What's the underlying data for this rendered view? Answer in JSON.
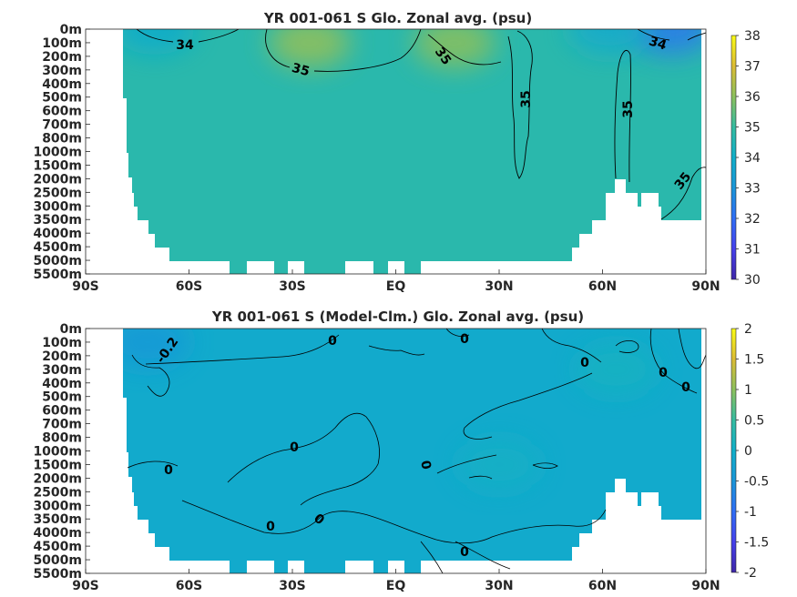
{
  "chart_data": [
    {
      "type": "heatmap",
      "title": "YR 001-061 S Glo. Zonal avg. (psu)",
      "x_ticks": [
        "90S",
        "60S",
        "30S",
        "EQ",
        "30N",
        "60N",
        "90N"
      ],
      "x_tick_values": [
        -90,
        -60,
        -30,
        0,
        30,
        60,
        90
      ],
      "xlim": [
        -90,
        90
      ],
      "y_ticks": [
        "0m",
        "100m",
        "200m",
        "300m",
        "400m",
        "500m",
        "600m",
        "700m",
        "800m",
        "1000m",
        "1500m",
        "2000m",
        "2500m",
        "3000m",
        "3500m",
        "4000m",
        "4500m",
        "5000m",
        "5500m"
      ],
      "colorbar": {
        "ticks": [
          "30",
          "31",
          "32",
          "33",
          "34",
          "35",
          "36",
          "37",
          "38"
        ],
        "tick_values": [
          30,
          31,
          32,
          33,
          34,
          35,
          36,
          37,
          38
        ],
        "range": [
          30,
          38
        ],
        "colormap": "parula"
      },
      "contour_labels": [
        {
          "text": "34",
          "lat": -66,
          "depth": "100m"
        },
        {
          "text": "35",
          "lat": -27,
          "depth": "250m"
        },
        {
          "text": "35",
          "lat": 14,
          "depth": "200m"
        },
        {
          "text": "35",
          "lat": 26,
          "depth": "600m"
        },
        {
          "text": "35",
          "lat": 62,
          "depth": "650m"
        },
        {
          "text": "34",
          "lat": 78,
          "depth": "100m"
        },
        {
          "text": "35",
          "lat": 80,
          "depth": "2000m"
        }
      ],
      "background_value": 34.7,
      "features": [
        {
          "lat": -25,
          "depth": "100m",
          "value": 36.1
        },
        {
          "lat": 17,
          "depth": "100m",
          "value": 36.0
        },
        {
          "lat": 80,
          "depth": "0m",
          "value": 32.3
        },
        {
          "lat": 62,
          "depth": "0m",
          "value": 33.8
        },
        {
          "lat": -70,
          "depth": "0m",
          "value": 33.9
        }
      ]
    },
    {
      "type": "heatmap",
      "title": "YR 001-061 S (Model-Clm.) Glo. Zonal avg. (psu)",
      "x_ticks": [
        "90S",
        "60S",
        "30S",
        "EQ",
        "30N",
        "60N",
        "90N"
      ],
      "x_tick_values": [
        -90,
        -60,
        -30,
        0,
        30,
        60,
        90
      ],
      "xlim": [
        -90,
        90
      ],
      "y_ticks": [
        "0m",
        "100m",
        "200m",
        "300m",
        "400m",
        "500m",
        "600m",
        "700m",
        "800m",
        "1000m",
        "1500m",
        "2000m",
        "2500m",
        "3000m",
        "3500m",
        "4000m",
        "4500m",
        "5000m",
        "5500m"
      ],
      "colorbar": {
        "ticks": [
          "2",
          "1.5",
          "1",
          "0.5",
          "0",
          "-0.5",
          "-1",
          "-1.5",
          "-2"
        ],
        "tick_values": [
          2,
          1.5,
          1,
          0.5,
          0,
          -0.5,
          -1,
          -1.5,
          -2
        ],
        "range": [
          -2,
          2
        ],
        "colormap": "parula"
      },
      "contour_labels": [
        {
          "text": "-0.2",
          "lat": -70,
          "depth": "200m"
        },
        {
          "text": "0",
          "lat": -22,
          "depth": "100m"
        },
        {
          "text": "0",
          "lat": 20,
          "depth": "100m"
        },
        {
          "text": "0",
          "lat": 50,
          "depth": "300m"
        },
        {
          "text": "0",
          "lat": 75,
          "depth": "400m"
        },
        {
          "text": "0",
          "lat": 82,
          "depth": "500m"
        },
        {
          "text": "0",
          "lat": -30,
          "depth": "1000m"
        },
        {
          "text": "0",
          "lat": -65,
          "depth": "1500m"
        },
        {
          "text": "0",
          "lat": 8,
          "depth": "1500m"
        },
        {
          "text": "0",
          "lat": -35,
          "depth": "3500m"
        },
        {
          "text": "0",
          "lat": -20,
          "depth": "3500m"
        },
        {
          "text": "0",
          "lat": 18,
          "depth": "4500m"
        }
      ],
      "background_value": -0.1,
      "features": [
        {
          "lat": -72,
          "depth": "100m",
          "value": -0.45
        },
        {
          "lat": 30,
          "depth": "1500m",
          "value": 0.05
        },
        {
          "lat": 64,
          "depth": "300m",
          "value": 0.1
        }
      ]
    }
  ]
}
